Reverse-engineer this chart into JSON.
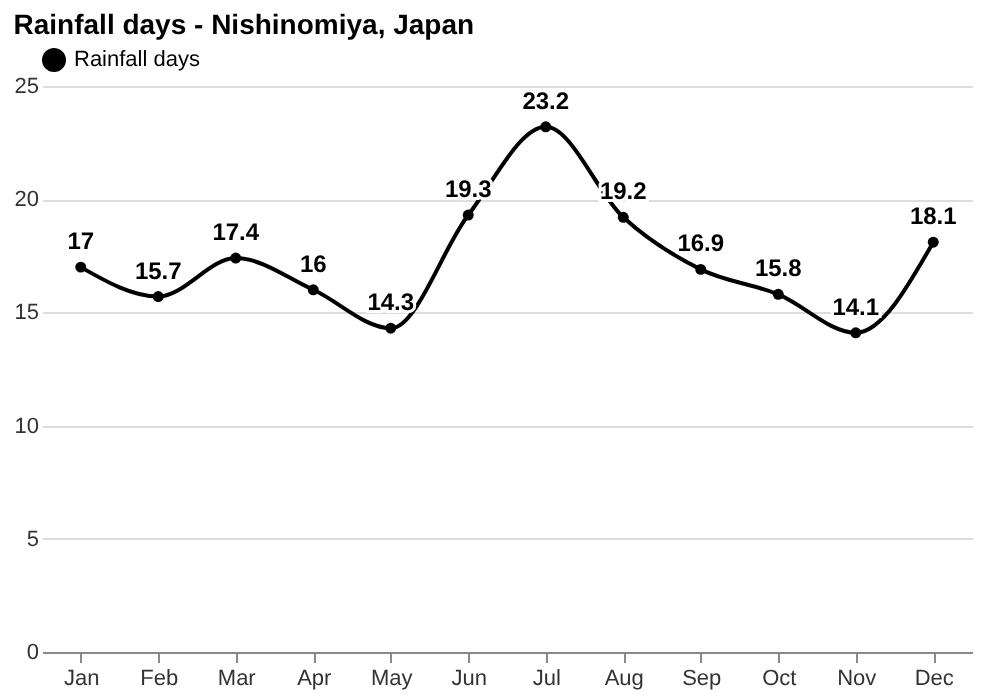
{
  "chart_data": {
    "type": "line",
    "title": "Rainfall days - Nishinomiya, Japan",
    "categories": [
      "Jan",
      "Feb",
      "Mar",
      "Apr",
      "May",
      "Jun",
      "Jul",
      "Aug",
      "Sep",
      "Oct",
      "Nov",
      "Dec"
    ],
    "series": [
      {
        "name": "Rainfall days",
        "color": "#000000",
        "values": [
          17,
          15.7,
          17.4,
          16,
          14.3,
          19.3,
          23.2,
          19.2,
          16.9,
          15.8,
          14.1,
          18.1
        ]
      }
    ],
    "ylim": [
      0,
      25
    ],
    "yticks": [
      0,
      5,
      10,
      15,
      20,
      25
    ],
    "grid": "y",
    "legend": "top left",
    "marker": "circle",
    "line_style": "solid",
    "data_labels": true
  }
}
